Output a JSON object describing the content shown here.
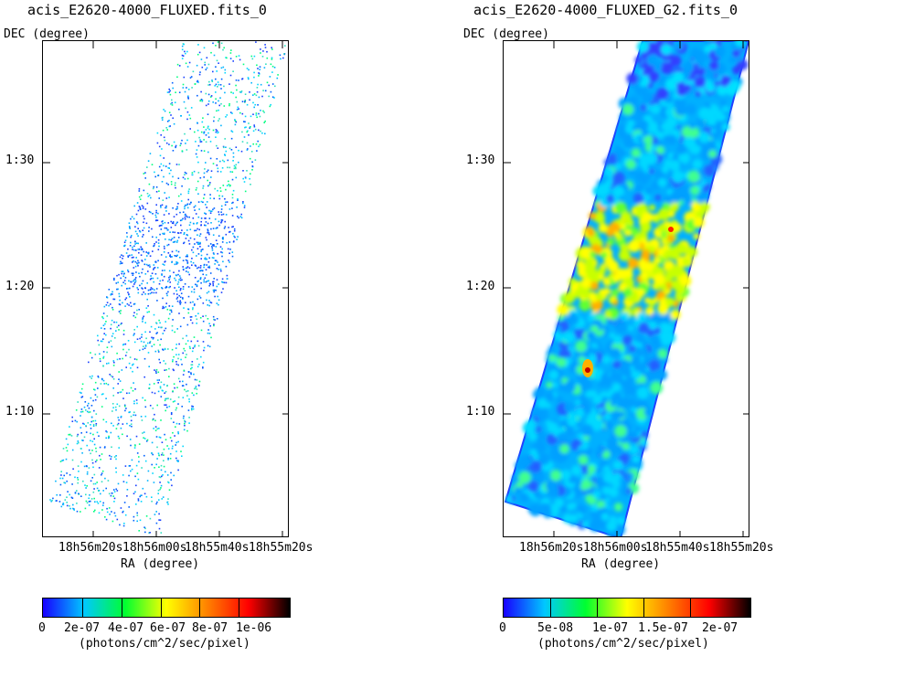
{
  "chart_data": [
    {
      "type": "heatmap",
      "title": "acis_E2620-4000_FLUXED.fits_0",
      "ylabel": "DEC (degree)",
      "xlabel": "RA (degree)",
      "yticks": [
        "1:30",
        "1:20",
        "1:10"
      ],
      "xticks": [
        "18h56m20s",
        "18h56m00s",
        "18h55m40s",
        "18h55m20s"
      ],
      "colorbar": {
        "ticks": [
          "0",
          "2e-07",
          "4e-07",
          "6e-07",
          "8e-07",
          "1e-06"
        ],
        "unit": "(photons/cm^2/sec/pixel)",
        "min": 0,
        "max": 1.2e-06
      },
      "colormap": [
        "#1800ff",
        "#00c8ff",
        "#00ff30",
        "#ffff00",
        "#ff8000",
        "#ff0000",
        "#000000"
      ]
    },
    {
      "type": "heatmap",
      "title": "acis_E2620-4000_FLUXED_G2.fits_0",
      "ylabel": "DEC (degree)",
      "xlabel": "RA (degree)",
      "yticks": [
        "1:30",
        "1:20",
        "1:10"
      ],
      "xticks": [
        "18h56m20s",
        "18h56m00s",
        "18h55m40s",
        "18h55m20s"
      ],
      "colorbar": {
        "ticks": [
          "0",
          "5e-08",
          "1e-07",
          "1.5e-07",
          "2e-07"
        ],
        "unit": "(photons/cm^2/sec/pixel)",
        "min": 0,
        "max": 2.2e-07
      },
      "colormap": [
        "#1800ff",
        "#00c8ff",
        "#00ff30",
        "#ffff00",
        "#ff8000",
        "#ff0000",
        "#000000"
      ]
    }
  ]
}
